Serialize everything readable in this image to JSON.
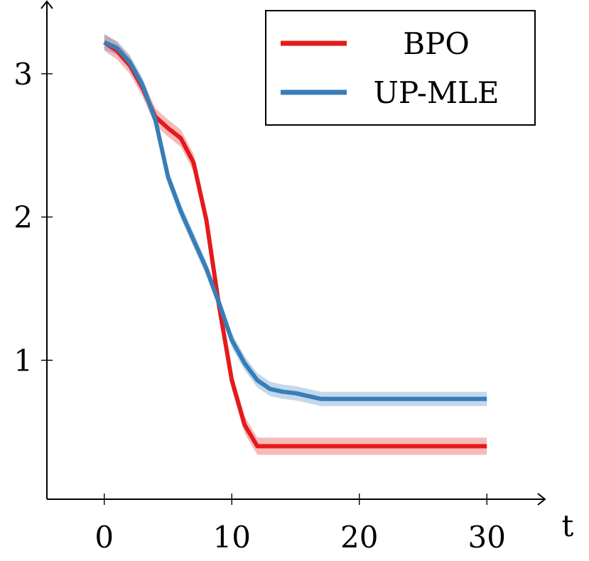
{
  "chart_data": {
    "type": "line",
    "title": "",
    "xlabel": "t",
    "ylabel": "",
    "xlim": [
      -4.5,
      34.5
    ],
    "ylim": [
      0.03,
      3.5
    ],
    "xticks": [
      0,
      10,
      20,
      30
    ],
    "xtick_labels": [
      "0",
      "10",
      "20",
      "30"
    ],
    "yticks": [
      1,
      2,
      3
    ],
    "ytick_labels": [
      "1",
      "2",
      "3"
    ],
    "grid": false,
    "legend_position": "top-right",
    "series": [
      {
        "name": "BPO",
        "color": "#e41a1c",
        "x": [
          0,
          1,
          2,
          3,
          4,
          5,
          6,
          7,
          8,
          9,
          10,
          11,
          12,
          13,
          14,
          15,
          16,
          17,
          18,
          19,
          20,
          21,
          22,
          23,
          24,
          25,
          26,
          27,
          28,
          29,
          30
        ],
        "y": [
          3.22,
          3.16,
          3.06,
          2.9,
          2.7,
          2.62,
          2.55,
          2.38,
          1.98,
          1.38,
          0.86,
          0.55,
          0.4,
          0.4,
          0.4,
          0.4,
          0.4,
          0.4,
          0.4,
          0.4,
          0.4,
          0.4,
          0.4,
          0.4,
          0.4,
          0.4,
          0.4,
          0.4,
          0.4,
          0.4,
          0.4
        ],
        "band": 0.06
      },
      {
        "name": "UP-MLE",
        "color": "#377eb8",
        "x": [
          0,
          1,
          2,
          3,
          4,
          5,
          6,
          7,
          8,
          9,
          10,
          11,
          12,
          13,
          14,
          15,
          16,
          17,
          18,
          19,
          20,
          21,
          22,
          23,
          24,
          25,
          26,
          27,
          28,
          29,
          30
        ],
        "y": [
          3.22,
          3.18,
          3.08,
          2.92,
          2.68,
          2.28,
          2.04,
          1.84,
          1.64,
          1.4,
          1.14,
          0.98,
          0.86,
          0.8,
          0.78,
          0.77,
          0.75,
          0.73,
          0.73,
          0.73,
          0.73,
          0.73,
          0.73,
          0.73,
          0.73,
          0.73,
          0.73,
          0.73,
          0.73,
          0.73,
          0.73
        ],
        "band": 0.05
      }
    ]
  }
}
